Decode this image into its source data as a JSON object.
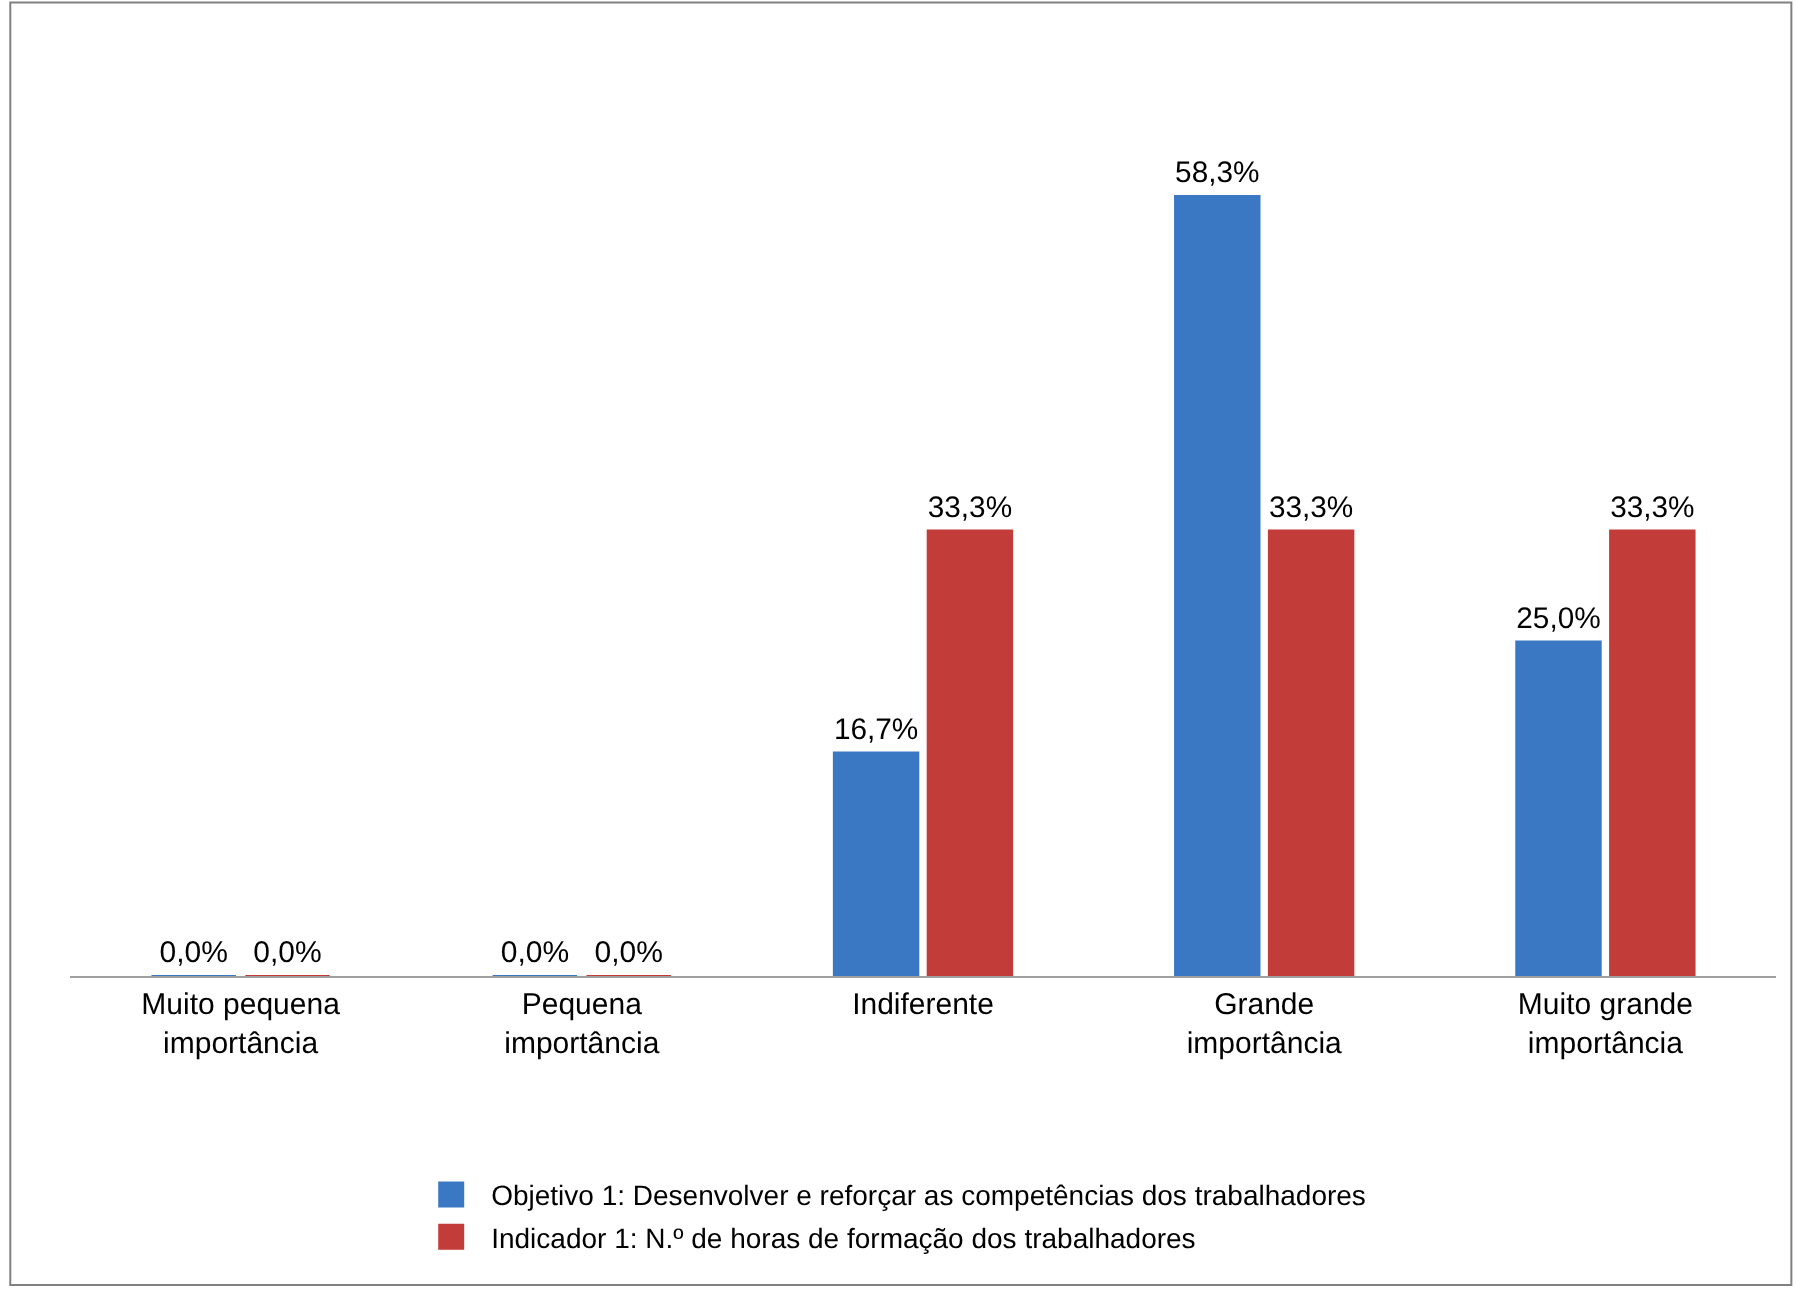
{
  "chart_data": {
    "type": "bar",
    "categories": [
      "Muito pequena importância",
      "Pequena importância",
      "Indiferente",
      "Grande importância",
      "Muito grande importância"
    ],
    "series": [
      {
        "name": "Objetivo 1: Desenvolver e reforçar as competências dos trabalhadores",
        "color": "#3b78c4",
        "values": [
          0.0,
          0.0,
          16.7,
          58.3,
          25.0
        ],
        "value_labels": [
          "0,0%",
          "0,0%",
          "16,7%",
          "58,3%",
          "25,0%"
        ]
      },
      {
        "name": "Indicador 1: N.º de horas de formação dos trabalhadores",
        "color": "#c23c39",
        "values": [
          0.0,
          0.0,
          33.3,
          33.3,
          33.3
        ],
        "value_labels": [
          "0,0%",
          "0,0%",
          "33,3%",
          "33,3%",
          "33,3%"
        ]
      }
    ],
    "legend": "bottom"
  }
}
